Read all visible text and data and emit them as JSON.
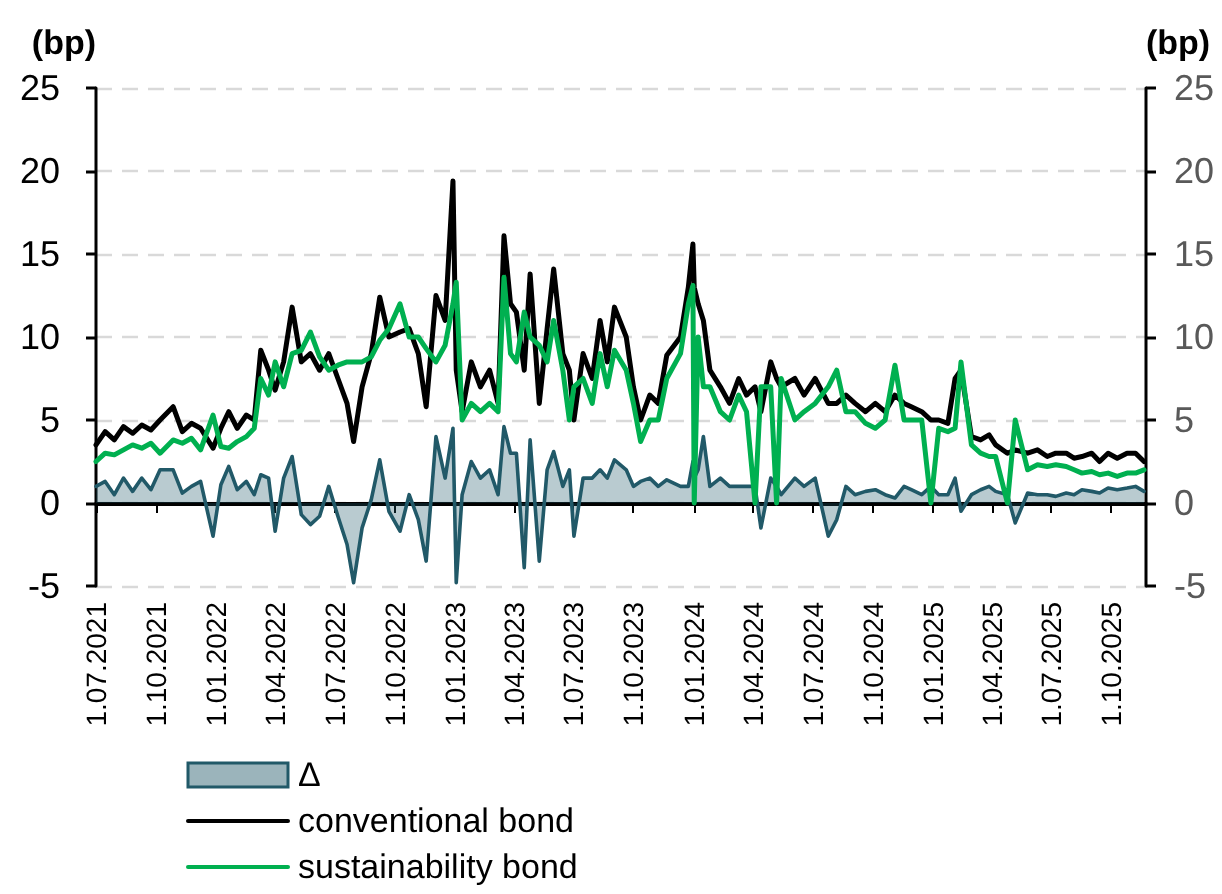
{
  "chart_data": {
    "type": "line",
    "x": [
      "2021-07-01",
      "2021-07-15",
      "2021-07-29",
      "2021-08-12",
      "2021-08-26",
      "2021-09-09",
      "2021-09-23",
      "2021-10-07",
      "2021-10-27",
      "2021-11-10",
      "2021-11-24",
      "2021-12-08",
      "2021-12-27",
      "2022-01-08",
      "2022-01-20",
      "2022-02-02",
      "2022-02-16",
      "2022-02-28",
      "2022-03-10",
      "2022-03-22",
      "2022-04-01",
      "2022-04-14",
      "2022-04-27",
      "2022-05-11",
      "2022-05-25",
      "2022-06-08",
      "2022-06-22",
      "2022-07-06",
      "2022-07-20",
      "2022-07-30",
      "2022-08-12",
      "2022-08-26",
      "2022-09-08",
      "2022-09-22",
      "2022-10-09",
      "2022-10-23",
      "2022-11-06",
      "2022-11-18",
      "2022-12-03",
      "2022-12-17",
      "2022-12-29",
      "2023-01-03",
      "2023-01-12",
      "2023-01-26",
      "2023-02-09",
      "2023-02-23",
      "2023-03-08",
      "2023-03-17",
      "2023-03-27",
      "2023-04-05",
      "2023-04-17",
      "2023-04-26",
      "2023-05-10",
      "2023-05-22",
      "2023-06-01",
      "2023-06-15",
      "2023-06-25",
      "2023-07-02",
      "2023-07-16",
      "2023-07-30",
      "2023-08-11",
      "2023-08-22",
      "2023-09-02",
      "2023-09-20",
      "2023-10-01",
      "2023-10-12",
      "2023-10-26",
      "2023-11-08",
      "2023-11-21",
      "2023-12-12",
      "2023-12-24",
      "2023-12-31",
      "2024-01-02",
      "2024-01-08",
      "2024-01-16",
      "2024-01-26",
      "2024-02-11",
      "2024-02-25",
      "2024-03-10",
      "2024-03-22",
      "2024-04-04",
      "2024-04-13",
      "2024-04-28",
      "2024-05-07",
      "2024-05-14",
      "2024-06-04",
      "2024-06-18",
      "2024-07-05",
      "2024-07-25",
      "2024-08-07",
      "2024-08-21",
      "2024-09-04",
      "2024-09-20",
      "2024-10-05",
      "2024-10-20",
      "2024-11-04",
      "2024-11-18",
      "2024-11-29",
      "2024-12-15",
      "2024-12-29",
      "2025-01-10",
      "2025-01-24",
      "2025-02-04",
      "2025-02-13",
      "2025-03-01",
      "2025-03-15",
      "2025-03-28",
      "2025-04-07",
      "2025-04-25",
      "2025-05-07",
      "2025-05-26",
      "2025-06-10",
      "2025-06-25",
      "2025-07-08",
      "2025-07-24",
      "2025-08-05",
      "2025-08-17",
      "2025-09-01",
      "2025-09-13",
      "2025-09-26",
      "2025-10-10",
      "2025-10-25",
      "2025-11-07",
      "2025-11-20"
    ],
    "series": [
      {
        "name": "Δ",
        "type": "area",
        "color": "#215968",
        "values": [
          1.0,
          1.3,
          0.5,
          1.5,
          0.7,
          1.5,
          0.8,
          2.0,
          2.0,
          0.6,
          1.0,
          1.3,
          -2.0,
          1.1,
          2.2,
          0.8,
          1.3,
          0.5,
          1.7,
          1.5,
          -1.7,
          1.5,
          2.8,
          -0.7,
          -1.3,
          -0.8,
          1.0,
          -0.8,
          -2.5,
          -4.8,
          -1.5,
          0.2,
          2.6,
          -0.5,
          -1.7,
          0.5,
          -1.0,
          -3.5,
          4.0,
          1.5,
          4.5,
          -4.8,
          0.5,
          2.5,
          1.5,
          2.0,
          0.5,
          4.6,
          3.0,
          3.0,
          -3.9,
          3.8,
          -3.5,
          2.0,
          3.1,
          1.0,
          2.0,
          -2.0,
          1.5,
          1.5,
          2.0,
          1.5,
          2.6,
          2.0,
          1.0,
          1.3,
          1.5,
          1.0,
          1.4,
          1.0,
          1.0,
          2.5,
          1.5,
          2.0,
          4.0,
          1.0,
          1.5,
          1.0,
          1.0,
          1.0,
          1.0,
          -1.5,
          1.5,
          1.0,
          0.5,
          1.5,
          1.0,
          1.5,
          -2.0,
          -1.0,
          1.0,
          0.5,
          0.7,
          0.8,
          0.5,
          0.3,
          1.0,
          0.8,
          0.5,
          1.0,
          0.5,
          0.5,
          1.5,
          -0.5,
          0.5,
          0.8,
          1.0,
          0.7,
          0.5,
          -1.2,
          0.6,
          0.5,
          0.5,
          0.4,
          0.6,
          0.5,
          0.8,
          0.7,
          0.6,
          0.9,
          0.8,
          0.9,
          1.0,
          0.7
        ]
      },
      {
        "name": "conventional bond",
        "color": "#000000",
        "values": [
          3.5,
          4.3,
          3.8,
          4.6,
          4.2,
          4.7,
          4.4,
          5.0,
          5.8,
          4.3,
          4.8,
          4.5,
          3.3,
          4.5,
          5.5,
          4.5,
          5.3,
          5.0,
          9.2,
          8.0,
          6.8,
          8.5,
          11.8,
          8.5,
          9.0,
          8.0,
          9.0,
          7.5,
          6.0,
          3.7,
          7.0,
          9.0,
          12.4,
          10.0,
          10.3,
          10.5,
          9.0,
          5.8,
          12.5,
          11.0,
          19.4,
          8.0,
          5.5,
          8.5,
          7.0,
          8.0,
          6.0,
          16.1,
          12.0,
          11.5,
          8.0,
          13.8,
          6.0,
          10.5,
          14.1,
          9.0,
          8.0,
          5.0,
          9.0,
          7.5,
          11.0,
          8.5,
          11.8,
          10.0,
          7.0,
          5.0,
          6.5,
          6.0,
          8.9,
          10.0,
          13.0,
          15.6,
          13.0,
          12.0,
          11.0,
          8.0,
          7.0,
          6.0,
          7.5,
          6.5,
          7.0,
          5.5,
          8.5,
          7.5,
          7.0,
          7.5,
          6.5,
          7.5,
          6.0,
          6.0,
          6.5,
          6.0,
          5.5,
          6.0,
          5.5,
          6.5,
          6.0,
          5.8,
          5.5,
          5.0,
          5.0,
          4.8,
          7.5,
          8.0,
          4.0,
          3.8,
          4.1,
          3.5,
          3.0,
          3.2,
          3.0,
          3.2,
          2.8,
          3.0,
          3.0,
          2.7,
          2.8,
          3.0,
          2.5,
          3.0,
          2.7,
          3.0,
          3.0,
          2.5
        ]
      },
      {
        "name": "sustainability bond",
        "color": "#00b050",
        "values": [
          2.5,
          3.0,
          2.9,
          3.2,
          3.5,
          3.3,
          3.6,
          3.0,
          3.8,
          3.6,
          3.9,
          3.2,
          5.3,
          3.4,
          3.3,
          3.7,
          4.0,
          4.5,
          7.5,
          6.5,
          8.5,
          7.0,
          9.0,
          9.2,
          10.3,
          8.8,
          8.0,
          8.3,
          8.5,
          8.5,
          8.5,
          8.8,
          9.8,
          10.5,
          12.0,
          10.0,
          10.0,
          9.3,
          8.5,
          9.5,
          12.0,
          13.3,
          5.0,
          6.0,
          5.5,
          6.0,
          5.5,
          13.6,
          9.0,
          8.5,
          11.5,
          10.0,
          9.5,
          8.5,
          11.0,
          8.0,
          5.0,
          7.0,
          7.5,
          6.0,
          9.0,
          7.0,
          9.2,
          8.0,
          6.0,
          3.7,
          5.0,
          5.0,
          7.5,
          9.0,
          12.0,
          13.1,
          0.0,
          10.0,
          7.0,
          7.0,
          5.5,
          5.0,
          6.5,
          5.5,
          0.0,
          7.0,
          7.0,
          0.0,
          7.5,
          5.0,
          5.5,
          6.0,
          7.0,
          8.0,
          5.5,
          5.5,
          4.8,
          4.5,
          5.0,
          8.3,
          5.0,
          5.0,
          5.0,
          0.0,
          4.5,
          4.3,
          4.5,
          8.5,
          3.5,
          3.0,
          2.8,
          2.8,
          0.0,
          5.0,
          2.0,
          2.3,
          2.2,
          2.3,
          2.2,
          2.0,
          1.8,
          1.9,
          1.7,
          1.8,
          1.6,
          1.8,
          1.8,
          2.0
        ]
      }
    ],
    "ylabel": "(bp)",
    "y2label": "(bp)",
    "xlim": [
      "2021-07-01",
      "2025-11-23"
    ],
    "xticks": [
      {
        "value": "2021-07-01",
        "label": "1.07.2021"
      },
      {
        "value": "2021-10-01",
        "label": "1.10.2021"
      },
      {
        "value": "2022-01-01",
        "label": "1.01.2022"
      },
      {
        "value": "2022-04-01",
        "label": "1.04.2022"
      },
      {
        "value": "2022-07-01",
        "label": "1.07.2022"
      },
      {
        "value": "2022-10-01",
        "label": "1.10.2022"
      },
      {
        "value": "2023-01-01",
        "label": "1.01.2023"
      },
      {
        "value": "2023-04-01",
        "label": "1.04.2023"
      },
      {
        "value": "2023-07-01",
        "label": "1.07.2023"
      },
      {
        "value": "2023-10-01",
        "label": "1.10.2023"
      },
      {
        "value": "2024-01-01",
        "label": "1.01.2024"
      },
      {
        "value": "2024-04-01",
        "label": "1.04.2024"
      },
      {
        "value": "2024-07-01",
        "label": "1.07.2024"
      },
      {
        "value": "2024-10-01",
        "label": "1.10.2024"
      },
      {
        "value": "2025-01-01",
        "label": "1.01.2025"
      },
      {
        "value": "2025-04-01",
        "label": "1.04.2025"
      },
      {
        "value": "2025-07-01",
        "label": "1.07.2025"
      },
      {
        "value": "2025-10-01",
        "label": "1.10.2025"
      }
    ],
    "ylim": [
      -5,
      25
    ],
    "yticks": [
      -5,
      0,
      5,
      10,
      15,
      20,
      25
    ],
    "y2lim": [
      -5,
      25
    ],
    "y2ticks": [
      -5,
      0,
      5,
      10,
      15,
      20,
      25
    ],
    "grid": "y",
    "legend": "bottom left",
    "marker": "none"
  }
}
